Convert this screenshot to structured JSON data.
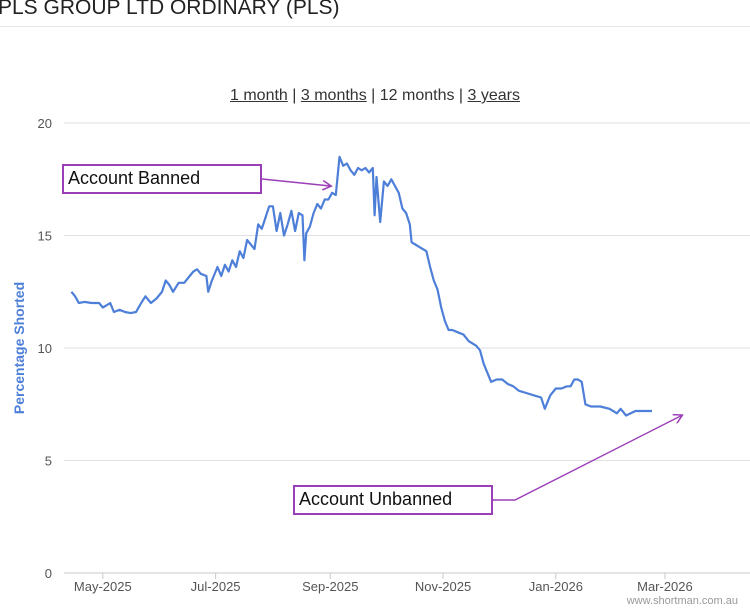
{
  "page": {
    "title": "PLS GROUP LTD ORDINARY (PLS)"
  },
  "range_selector": {
    "options": [
      {
        "label": "1 month",
        "active": false
      },
      {
        "label": "3 months",
        "active": false
      },
      {
        "label": "12 months",
        "active": true
      },
      {
        "label": "3 years",
        "active": false
      }
    ],
    "separator": "|"
  },
  "annotations": {
    "banned": "Account Banned",
    "unbanned": "Account Unbanned"
  },
  "watermark": "www.shortman.com.au",
  "colors": {
    "line": "#4e7fd8",
    "grid": "#e0e0e0",
    "annotation": "#9b3fb8",
    "axis_label": "#4e7fd8"
  },
  "chart_data": {
    "type": "line",
    "title": "",
    "xlabel": "",
    "ylabel": "Percentage Shorted",
    "ylim": [
      0,
      20
    ],
    "yticks": [
      0,
      5,
      10,
      15,
      20
    ],
    "x_start": "2025-04-10",
    "x_end": "2026-04-16",
    "xticks": [
      {
        "label": "May-2025",
        "date": "2025-05-01"
      },
      {
        "label": "Jul-2025",
        "date": "2025-07-01"
      },
      {
        "label": "Sep-2025",
        "date": "2025-09-01"
      },
      {
        "label": "Nov-2025",
        "date": "2025-11-01"
      },
      {
        "label": "Jan-2026",
        "date": "2026-01-01"
      },
      {
        "label": "Mar-2026",
        "date": "2026-03-01"
      }
    ],
    "series": [
      {
        "name": "Percentage Shorted",
        "points": [
          [
            "2025-04-14",
            12.5
          ],
          [
            "2025-04-16",
            12.3
          ],
          [
            "2025-04-18",
            12.0
          ],
          [
            "2025-04-21",
            12.05
          ],
          [
            "2025-04-25",
            12.0
          ],
          [
            "2025-04-29",
            12.0
          ],
          [
            "2025-05-01",
            11.8
          ],
          [
            "2025-05-03",
            11.9
          ],
          [
            "2025-05-05",
            12.0
          ],
          [
            "2025-05-07",
            11.6
          ],
          [
            "2025-05-10",
            11.7
          ],
          [
            "2025-05-13",
            11.6
          ],
          [
            "2025-05-16",
            11.55
          ],
          [
            "2025-05-19",
            11.6
          ],
          [
            "2025-05-21",
            11.9
          ],
          [
            "2025-05-24",
            12.3
          ],
          [
            "2025-05-27",
            12.0
          ],
          [
            "2025-05-30",
            12.2
          ],
          [
            "2025-06-02",
            12.5
          ],
          [
            "2025-06-04",
            13.0
          ],
          [
            "2025-06-06",
            12.8
          ],
          [
            "2025-06-08",
            12.5
          ],
          [
            "2025-06-11",
            12.9
          ],
          [
            "2025-06-14",
            12.9
          ],
          [
            "2025-06-17",
            13.2
          ],
          [
            "2025-06-19",
            13.4
          ],
          [
            "2025-06-21",
            13.5
          ],
          [
            "2025-06-23",
            13.3
          ],
          [
            "2025-06-26",
            13.2
          ],
          [
            "2025-06-27",
            12.5
          ],
          [
            "2025-06-29",
            13.0
          ],
          [
            "2025-07-02",
            13.6
          ],
          [
            "2025-07-04",
            13.2
          ],
          [
            "2025-07-06",
            13.7
          ],
          [
            "2025-07-08",
            13.4
          ],
          [
            "2025-07-10",
            13.9
          ],
          [
            "2025-07-12",
            13.6
          ],
          [
            "2025-07-14",
            14.3
          ],
          [
            "2025-07-16",
            14.0
          ],
          [
            "2025-07-18",
            14.8
          ],
          [
            "2025-07-20",
            14.6
          ],
          [
            "2025-07-22",
            14.4
          ],
          [
            "2025-07-24",
            15.5
          ],
          [
            "2025-07-26",
            15.3
          ],
          [
            "2025-07-28",
            15.8
          ],
          [
            "2025-07-30",
            16.3
          ],
          [
            "2025-08-01",
            16.3
          ],
          [
            "2025-08-03",
            15.2
          ],
          [
            "2025-08-05",
            16.0
          ],
          [
            "2025-08-07",
            15.0
          ],
          [
            "2025-08-09",
            15.5
          ],
          [
            "2025-08-11",
            16.1
          ],
          [
            "2025-08-13",
            15.2
          ],
          [
            "2025-08-15",
            16.0
          ],
          [
            "2025-08-17",
            15.9
          ],
          [
            "2025-08-18",
            13.9
          ],
          [
            "2025-08-19",
            15.1
          ],
          [
            "2025-08-21",
            15.4
          ],
          [
            "2025-08-23",
            16.0
          ],
          [
            "2025-08-25",
            16.4
          ],
          [
            "2025-08-27",
            16.2
          ],
          [
            "2025-08-29",
            16.6
          ],
          [
            "2025-08-31",
            16.6
          ],
          [
            "2025-09-02",
            16.9
          ],
          [
            "2025-09-04",
            16.8
          ],
          [
            "2025-09-06",
            18.5
          ],
          [
            "2025-09-08",
            18.1
          ],
          [
            "2025-09-10",
            18.2
          ],
          [
            "2025-09-12",
            17.9
          ],
          [
            "2025-09-14",
            17.7
          ],
          [
            "2025-09-16",
            18.0
          ],
          [
            "2025-09-18",
            17.9
          ],
          [
            "2025-09-20",
            18.0
          ],
          [
            "2025-09-22",
            17.8
          ],
          [
            "2025-09-24",
            18.0
          ],
          [
            "2025-09-25",
            15.9
          ],
          [
            "2025-09-26",
            17.6
          ],
          [
            "2025-09-28",
            15.6
          ],
          [
            "2025-09-30",
            17.4
          ],
          [
            "2025-10-02",
            17.2
          ],
          [
            "2025-10-04",
            17.5
          ],
          [
            "2025-10-06",
            17.2
          ],
          [
            "2025-10-08",
            16.9
          ],
          [
            "2025-10-10",
            16.2
          ],
          [
            "2025-10-12",
            16.0
          ],
          [
            "2025-10-14",
            15.5
          ],
          [
            "2025-10-15",
            14.7
          ],
          [
            "2025-10-17",
            14.6
          ],
          [
            "2025-10-19",
            14.5
          ],
          [
            "2025-10-21",
            14.4
          ],
          [
            "2025-10-23",
            14.3
          ],
          [
            "2025-10-25",
            13.6
          ],
          [
            "2025-10-27",
            13.0
          ],
          [
            "2025-10-29",
            12.6
          ],
          [
            "2025-10-31",
            11.8
          ],
          [
            "2025-11-02",
            11.2
          ],
          [
            "2025-11-04",
            10.8
          ],
          [
            "2025-11-06",
            10.8
          ],
          [
            "2025-11-09",
            10.7
          ],
          [
            "2025-11-12",
            10.6
          ],
          [
            "2025-11-15",
            10.3
          ],
          [
            "2025-11-17",
            10.2
          ],
          [
            "2025-11-19",
            10.1
          ],
          [
            "2025-11-21",
            9.9
          ],
          [
            "2025-11-23",
            9.3
          ],
          [
            "2025-11-25",
            8.9
          ],
          [
            "2025-11-27",
            8.5
          ],
          [
            "2025-11-30",
            8.6
          ],
          [
            "2025-12-03",
            8.6
          ],
          [
            "2025-12-06",
            8.4
          ],
          [
            "2025-12-09",
            8.3
          ],
          [
            "2025-12-12",
            8.1
          ],
          [
            "2025-12-16",
            8.0
          ],
          [
            "2025-12-20",
            7.9
          ],
          [
            "2025-12-24",
            7.8
          ],
          [
            "2025-12-26",
            7.3
          ],
          [
            "2025-12-29",
            7.9
          ],
          [
            "2026-01-01",
            8.2
          ],
          [
            "2026-01-04",
            8.2
          ],
          [
            "2026-01-07",
            8.3
          ],
          [
            "2026-01-09",
            8.3
          ],
          [
            "2026-01-11",
            8.6
          ],
          [
            "2026-01-13",
            8.6
          ],
          [
            "2026-01-15",
            8.5
          ],
          [
            "2026-01-17",
            7.5
          ],
          [
            "2026-01-20",
            7.4
          ],
          [
            "2026-01-25",
            7.4
          ],
          [
            "2026-01-30",
            7.3
          ],
          [
            "2026-02-03",
            7.1
          ],
          [
            "2026-02-05",
            7.3
          ],
          [
            "2026-02-08",
            7.0
          ],
          [
            "2026-02-13",
            7.2
          ],
          [
            "2026-02-18",
            7.2
          ],
          [
            "2026-02-22",
            7.2
          ]
        ]
      }
    ],
    "annotation_arrows": [
      {
        "label": "Account Banned",
        "date": "2025-09-01",
        "value": 17.2
      },
      {
        "label": "Account Unbanned",
        "date": "2026-03-10",
        "value": 7.0
      }
    ]
  }
}
